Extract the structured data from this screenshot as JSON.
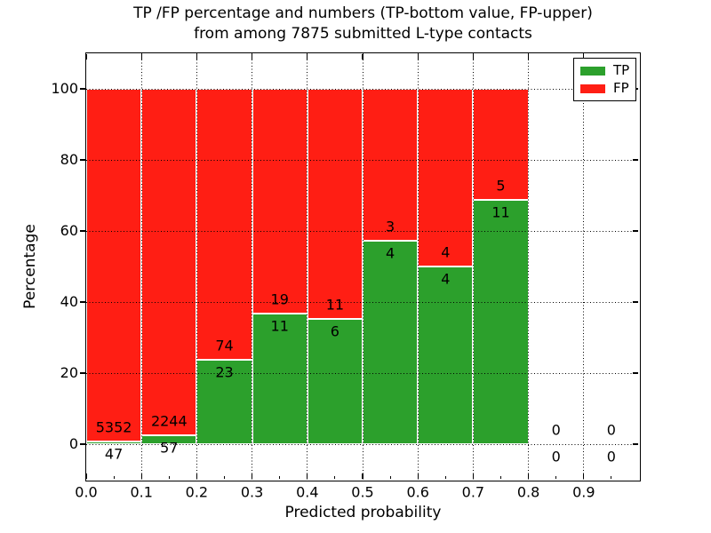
{
  "figure": {
    "title": "TP /FP percentage and numbers (TP-bottom value, FP-upper)\nfrom among 7875 submitted L-type contacts",
    "xlabel": "Predicted probability",
    "ylabel": "Percentage"
  },
  "legend": {
    "position": "upper right",
    "items": [
      {
        "label": "TP",
        "color": "#2ca02c"
      },
      {
        "label": "FP",
        "color": "#ff1e14"
      }
    ]
  },
  "chart_data": {
    "type": "bar",
    "stacked": true,
    "normalized_to_percent": true,
    "title": "TP /FP percentage and numbers (TP-bottom value, FP-upper) from among 7875 submitted L-type contacts",
    "xlabel": "Predicted probability",
    "ylabel": "Percentage",
    "total_contacts": 7875,
    "xlim": [
      0.0,
      1.0
    ],
    "ylim": [
      -10,
      110
    ],
    "x_ticks": [
      0.0,
      0.1,
      0.2,
      0.3,
      0.4,
      0.5,
      0.6,
      0.7,
      0.8,
      0.9
    ],
    "x_tick_labels": [
      "0.0",
      "0.1",
      "0.2",
      "0.3",
      "0.4",
      "0.5",
      "0.6",
      "0.7",
      "0.8",
      "0.9"
    ],
    "x_minor_ticks": [
      0.05,
      0.15,
      0.25,
      0.35,
      0.45,
      0.55,
      0.65,
      0.75,
      0.85,
      0.95
    ],
    "y_ticks": [
      0,
      20,
      40,
      60,
      80,
      100
    ],
    "y_tick_labels": [
      "0",
      "20",
      "40",
      "60",
      "80",
      "100"
    ],
    "grid": "dotted",
    "legend_position": "upper right",
    "colors": {
      "tp": "#2ca02c",
      "fp": "#ff1e14",
      "bar_edge": "#ffffff",
      "grid": "#000000"
    },
    "series_names": [
      "TP",
      "FP"
    ],
    "bins": [
      {
        "range": "0.0-0.1",
        "x0": 0.0,
        "x1": 0.1,
        "tp": 47,
        "fp": 5352,
        "tp_pct": 0.87
      },
      {
        "range": "0.1-0.2",
        "x0": 0.1,
        "x1": 0.2,
        "tp": 57,
        "fp": 2244,
        "tp_pct": 2.48
      },
      {
        "range": "0.2-0.3",
        "x0": 0.2,
        "x1": 0.3,
        "tp": 23,
        "fp": 74,
        "tp_pct": 23.71
      },
      {
        "range": "0.3-0.4",
        "x0": 0.3,
        "x1": 0.4,
        "tp": 11,
        "fp": 19,
        "tp_pct": 36.67
      },
      {
        "range": "0.4-0.5",
        "x0": 0.4,
        "x1": 0.5,
        "tp": 6,
        "fp": 11,
        "tp_pct": 35.29
      },
      {
        "range": "0.5-0.6",
        "x0": 0.5,
        "x1": 0.6,
        "tp": 4,
        "fp": 3,
        "tp_pct": 57.14
      },
      {
        "range": "0.6-0.7",
        "x0": 0.6,
        "x1": 0.7,
        "tp": 4,
        "fp": 4,
        "tp_pct": 50.0
      },
      {
        "range": "0.7-0.8",
        "x0": 0.7,
        "x1": 0.8,
        "tp": 11,
        "fp": 5,
        "tp_pct": 68.75
      },
      {
        "range": "0.8-0.9",
        "x0": 0.8,
        "x1": 0.9,
        "tp": 0,
        "fp": 0,
        "tp_pct": 0
      },
      {
        "range": "0.9-1.0",
        "x0": 0.9,
        "x1": 1.0,
        "tp": 0,
        "fp": 0,
        "tp_pct": 0
      }
    ]
  }
}
